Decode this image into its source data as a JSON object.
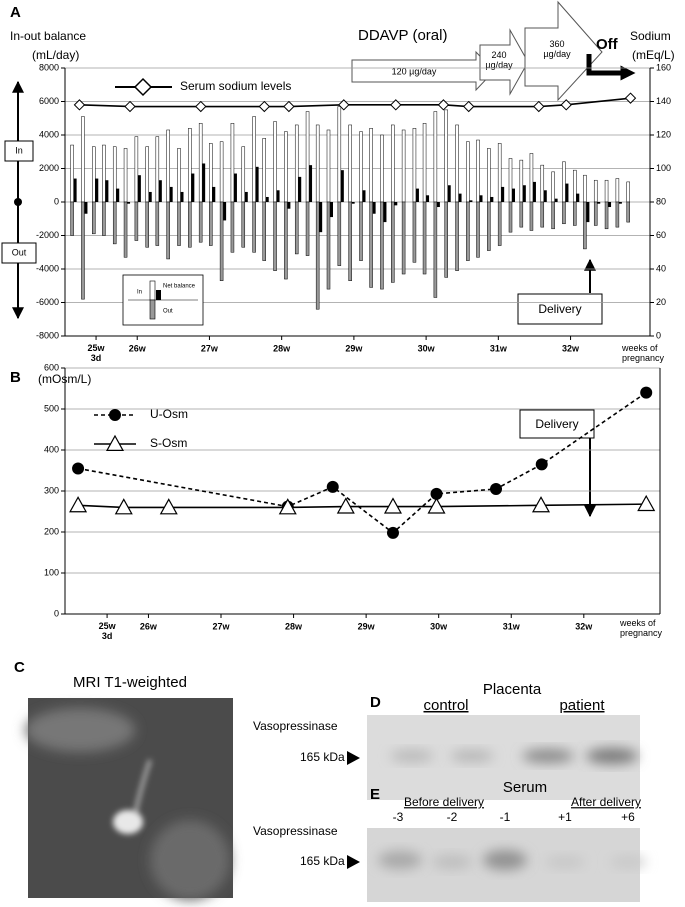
{
  "chart_data": [
    {
      "type": "bar",
      "label": "A",
      "ylabel": "In-out balance",
      "yunit": "(mL/day)",
      "y2label": "Sodium",
      "y2unit": "(mEq/L)",
      "xlabel": "weeks of\npregnancy",
      "dosing": {
        "title": "DDAVP (oral)",
        "steps": [
          "120 µg/day",
          "240\nµg/day",
          "360\nµg/day",
          "Off"
        ]
      },
      "in_label": "In",
      "out_label": "Out",
      "delivery": "Delivery",
      "xlim": [
        25,
        33.1
      ],
      "ylim": [
        -8000,
        8000
      ],
      "y2lim": [
        0,
        160
      ],
      "grid": true,
      "xticks": [
        {
          "value": 25.43,
          "label": "25w\n3d"
        },
        {
          "value": 26,
          "label": "26w"
        },
        {
          "value": 27,
          "label": "27w"
        },
        {
          "value": 28,
          "label": "28w"
        },
        {
          "value": 29,
          "label": "29w"
        },
        {
          "value": 30,
          "label": "30w"
        },
        {
          "value": 31,
          "label": "31w"
        },
        {
          "value": 32,
          "label": "32w"
        }
      ],
      "yticks": [
        -8000,
        -6000,
        -4000,
        -2000,
        0,
        2000,
        4000,
        6000,
        8000
      ],
      "y2ticks": [
        0,
        20,
        40,
        60,
        80,
        100,
        120,
        140,
        160
      ],
      "x": [
        25.14,
        25.29,
        25.44,
        25.58,
        25.73,
        25.88,
        26.03,
        26.18,
        26.32,
        26.47,
        26.62,
        26.77,
        26.92,
        27.06,
        27.21,
        27.36,
        27.51,
        27.66,
        27.8,
        27.95,
        28.1,
        28.25,
        28.4,
        28.54,
        28.69,
        28.84,
        28.99,
        29.14,
        29.28,
        29.43,
        29.58,
        29.73,
        29.88,
        30.02,
        30.17,
        30.32,
        30.47,
        30.62,
        30.76,
        30.91,
        31.06,
        31.21,
        31.36,
        31.5,
        31.65,
        31.8,
        31.95,
        32.1,
        32.24,
        32.39,
        32.54,
        32.69,
        32.84
      ],
      "series": [
        {
          "name": "In",
          "color": "#ffffff",
          "values": [
            3400,
            5100,
            3300,
            3400,
            3300,
            3200,
            3900,
            3300,
            3900,
            4300,
            3200,
            4400,
            4700,
            3500,
            3600,
            4700,
            3300,
            5100,
            3800,
            4800,
            4200,
            4600,
            5400,
            4600,
            4300,
            5700,
            4600,
            4200,
            4400,
            4000,
            4600,
            4300,
            4400,
            4700,
            5400,
            5500,
            4600,
            3600,
            3700,
            3200,
            3500,
            2600,
            2500,
            2900,
            2200,
            1800,
            2400,
            1900,
            1600,
            1300,
            1300,
            1400,
            1200
          ]
        },
        {
          "name": "Out",
          "color": "#999999",
          "values": [
            -2000,
            -5800,
            -1900,
            -2000,
            -2500,
            -3300,
            -2300,
            -2700,
            -2600,
            -3400,
            -2600,
            -2700,
            -2400,
            -2600,
            -4700,
            -3000,
            -2700,
            -3000,
            -3500,
            -4100,
            -4600,
            -3100,
            -3200,
            -6400,
            -5200,
            -3800,
            -4700,
            -3500,
            -5100,
            -5200,
            -4800,
            -4300,
            -3600,
            -4300,
            -5700,
            -4500,
            -4100,
            -3500,
            -3300,
            -2900,
            -2600,
            -1800,
            -1500,
            -1700,
            -1500,
            -1600,
            -1300,
            -1400,
            -2800,
            -1400,
            -1600,
            -1500,
            -1200
          ]
        },
        {
          "name": "Net balance",
          "color": "#000000",
          "values": [
            1400,
            -700,
            1400,
            1300,
            800,
            -100,
            1600,
            600,
            1300,
            900,
            600,
            1700,
            2300,
            900,
            -1100,
            1700,
            600,
            2100,
            300,
            700,
            -400,
            1500,
            2200,
            -1800,
            -900,
            1900,
            -100,
            700,
            -700,
            -1200,
            -200,
            0,
            800,
            400,
            -300,
            1000,
            500,
            100,
            400,
            300,
            900,
            800,
            1000,
            1200,
            700,
            200,
            1100,
            500,
            -1200,
            -100,
            -300,
            -100,
            0
          ]
        },
        {
          "name": "Serum sodium levels",
          "type": "line",
          "axis": "y2",
          "color": "#000000",
          "x": [
            25.2,
            25.9,
            26.88,
            27.76,
            28.1,
            28.86,
            29.58,
            30.24,
            30.59,
            31.56,
            31.94,
            32.83
          ],
          "values": [
            138,
            137,
            137,
            137,
            137,
            138,
            138,
            138,
            137,
            137,
            138,
            142
          ]
        }
      ]
    },
    {
      "type": "line",
      "label": "B",
      "yunit": "(mOsm/L)",
      "xlabel": "weeks of\npregnancy",
      "delivery": "Delivery",
      "xlim": [
        24.85,
        33.05
      ],
      "ylim": [
        0,
        600
      ],
      "grid": true,
      "xticks": [
        {
          "value": 25.43,
          "label": "25w\n3d"
        },
        {
          "value": 26,
          "label": "26w"
        },
        {
          "value": 27,
          "label": "27w"
        },
        {
          "value": 28,
          "label": "28w"
        },
        {
          "value": 29,
          "label": "29w"
        },
        {
          "value": 30,
          "label": "30w"
        },
        {
          "value": 31,
          "label": "31w"
        },
        {
          "value": 32,
          "label": "32w"
        }
      ],
      "yticks": [
        0,
        100,
        200,
        300,
        400,
        500,
        600
      ],
      "series": [
        {
          "name": "U-Osm",
          "color": "#000000",
          "x": [
            25.03,
            27.92,
            28.54,
            29.37,
            29.97,
            30.79,
            31.42,
            32.86
          ],
          "values": [
            355,
            262,
            310,
            198,
            293,
            305,
            365,
            540
          ]
        },
        {
          "name": "S-Osm",
          "color": "#000000",
          "x": [
            25.03,
            25.66,
            26.28,
            27.92,
            28.72,
            29.37,
            29.97,
            31.41,
            32.86
          ],
          "values": [
            265,
            260,
            260,
            260,
            262,
            262,
            262,
            265,
            268
          ]
        }
      ]
    }
  ],
  "panels": {
    "C": {
      "label": "C",
      "title": "MRI  T1-weighted"
    },
    "D": {
      "label": "D",
      "title": "Placenta",
      "groups": [
        "control",
        "patient"
      ],
      "row_label": "Vasopressinase",
      "marker": "165 kDa"
    },
    "E": {
      "label": "E",
      "title": "Serum",
      "groups": [
        "Before delivery",
        "After delivery"
      ],
      "lanes": [
        "-3",
        "-2",
        "-1",
        "+1",
        "+6"
      ],
      "row_label": "Vasopressinase",
      "marker": "165 kDa"
    }
  }
}
